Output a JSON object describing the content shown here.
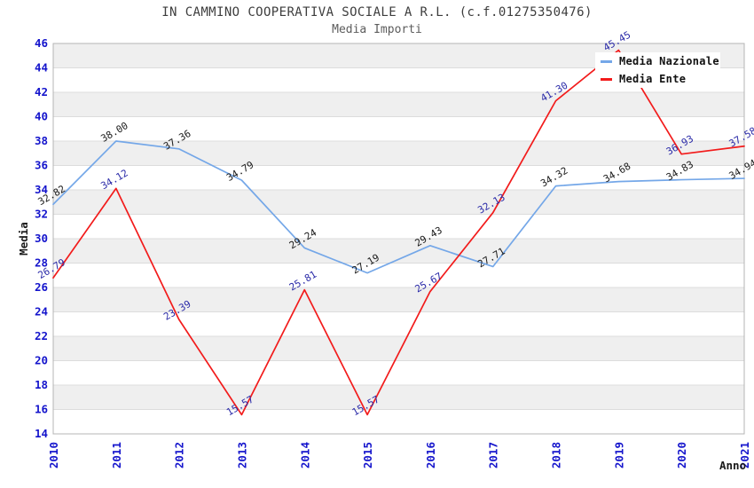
{
  "chart_data": {
    "type": "line",
    "title": "IN CAMMINO COOPERATIVA SOCIALE A R.L. (c.f.01275350476)",
    "subtitle": "Media Importi",
    "xlabel": "Anno",
    "ylabel": "Media",
    "ylim": [
      14,
      46
    ],
    "ytick_step": 2,
    "grid": "horizontal-stripes",
    "legend_position": "top-right",
    "categories": [
      "2010",
      "2011",
      "2012",
      "2013",
      "2014",
      "2015",
      "2016",
      "2017",
      "2018",
      "2019",
      "2020",
      "2021"
    ],
    "series": [
      {
        "name": "Media Nazionale",
        "color": "#74a7e8",
        "label_color": "#1a1a1a",
        "values": [
          32.82,
          38.0,
          37.36,
          34.79,
          29.24,
          27.19,
          29.43,
          27.71,
          34.32,
          34.68,
          34.83,
          34.94
        ],
        "labels": [
          "32.82",
          "38.00",
          "37.36",
          "34.79",
          "29.24",
          "27.19",
          "29.43",
          "27.71",
          "34.32",
          "34.68",
          "34.83",
          "34.94"
        ]
      },
      {
        "name": "Media Ente",
        "color": "#f21b1b",
        "label_color": "#2a2aa8",
        "values": [
          26.79,
          34.12,
          23.39,
          15.57,
          25.81,
          15.57,
          25.67,
          32.13,
          41.3,
          45.45,
          36.93,
          37.58
        ],
        "labels": [
          "26.79",
          "34.12",
          "23.39",
          "15.57",
          "25.81",
          "15.57",
          "25.67",
          "32.13",
          "41.30",
          "45.45",
          "36.93",
          "37.58"
        ]
      }
    ],
    "style_colors": {
      "tick_label": "#1414cc",
      "band_gray": "#efefef",
      "gridline": "#dcdcdc",
      "plot_border": "#b4b4b4",
      "axis_title": "#1a1a1a"
    }
  }
}
